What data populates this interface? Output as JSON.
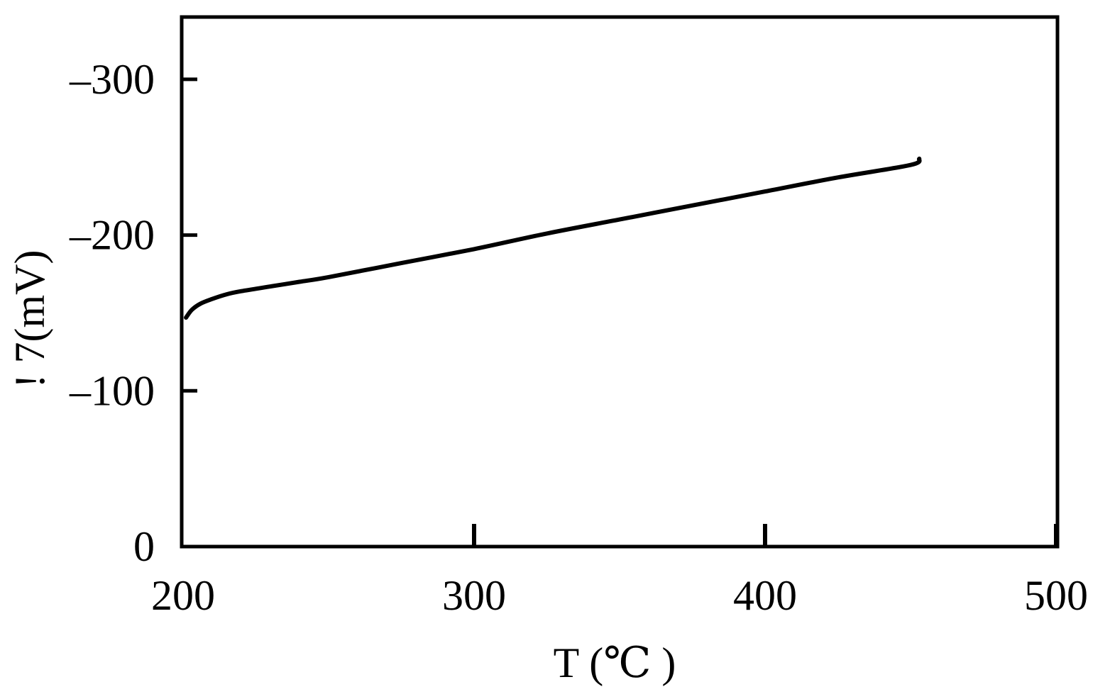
{
  "chart_data": {
    "type": "line",
    "xlabel": "T (℃ )",
    "ylabel": "! 7(mV)",
    "xlim": [
      200,
      500
    ],
    "ylim": [
      0,
      -340
    ],
    "x_ticks": [
      200,
      300,
      400,
      500
    ],
    "x_tick_labels": [
      "200",
      "300",
      "400",
      "500"
    ],
    "y_ticks": [
      0,
      -100,
      -200,
      -300
    ],
    "y_tick_labels": [
      "0",
      "–100",
      "–200",
      "–300"
    ],
    "grid": false,
    "series": [
      {
        "color": "#000000",
        "x": [
          201,
          203,
          206,
          210,
          215,
          220,
          230,
          240,
          250,
          275,
          300,
          325,
          350,
          375,
          400,
          425,
          450,
          453
        ],
        "y": [
          -147,
          -152,
          -156,
          -159,
          -162,
          -164,
          -167,
          -170,
          -173,
          -182,
          -191,
          -201,
          -210,
          -219,
          -228,
          -237,
          -245,
          -249
        ]
      }
    ],
    "colors": {
      "axis": "#000000",
      "line": "#000000",
      "background": "#ffffff"
    }
  }
}
